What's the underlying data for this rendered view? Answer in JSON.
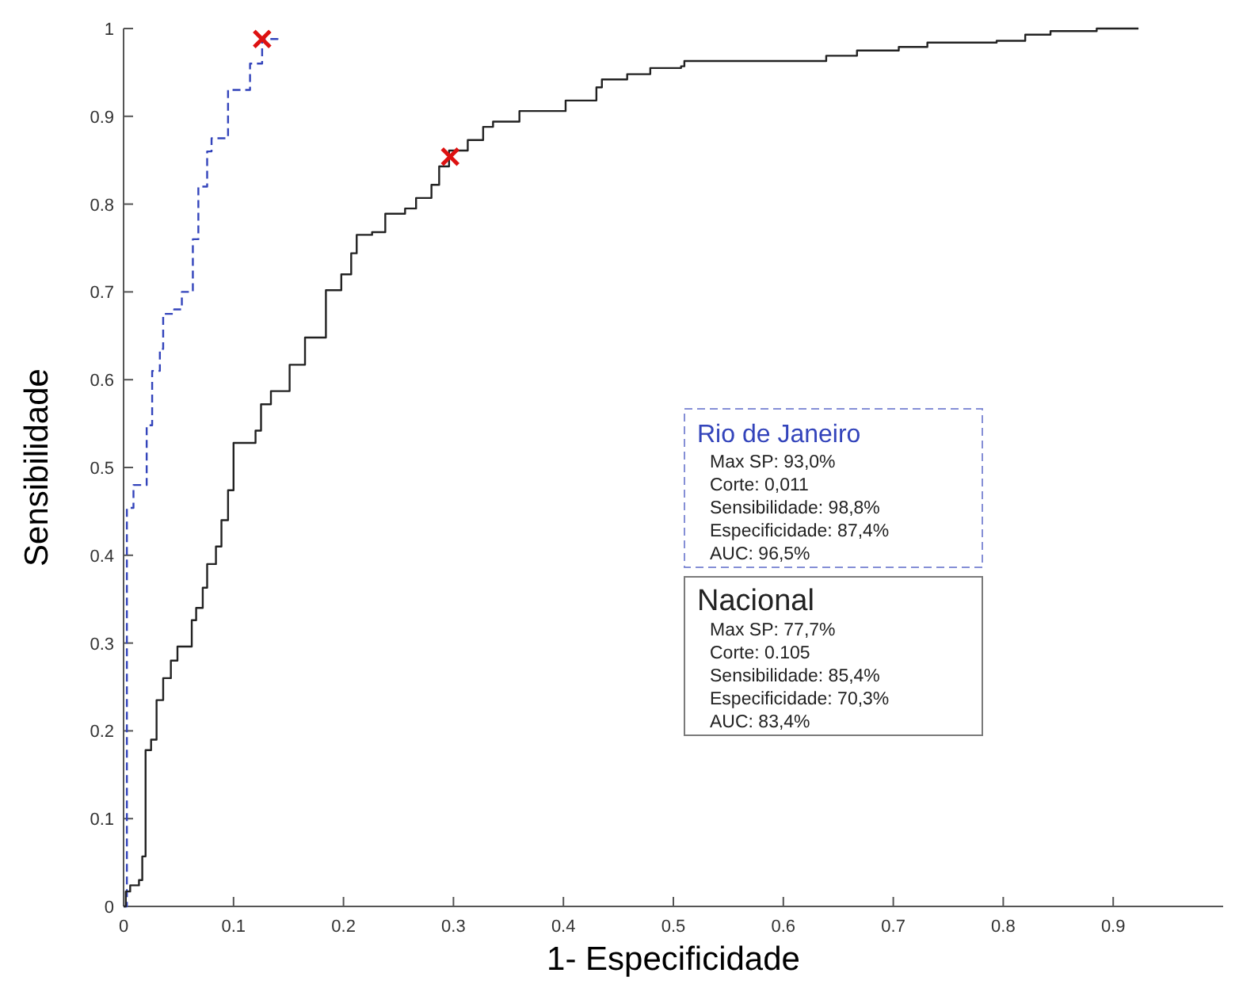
{
  "chart_data": {
    "type": "step",
    "xlabel": "1- Especificidade",
    "ylabel": "Sensibilidade",
    "xlim": [
      0,
      1
    ],
    "ylim": [
      0,
      1
    ],
    "xticks": [
      0,
      0.1,
      0.2,
      0.3,
      0.4,
      0.5,
      0.6,
      0.7,
      0.8,
      0.9
    ],
    "yticks": [
      0,
      0.1,
      0.2,
      0.3,
      0.4,
      0.5,
      0.6,
      0.7,
      0.8,
      0.9,
      1
    ],
    "grid": false,
    "legend": "right",
    "series": [
      {
        "name": "Rio de Janeiro",
        "color": "#3344bb",
        "line_style": "dashed",
        "x": [
          0,
          0.003,
          0.009,
          0.02,
          0.021,
          0.026,
          0.033,
          0.036,
          0.046,
          0.053,
          0.061,
          0.063,
          0.068,
          0.076,
          0.08,
          0.095,
          0.111,
          0.115,
          0.126,
          0.14
        ],
        "values": [
          0,
          0.454,
          0.48,
          0.48,
          0.548,
          0.61,
          0.635,
          0.675,
          0.68,
          0.7,
          0.7,
          0.76,
          0.82,
          0.86,
          0.875,
          0.93,
          0.93,
          0.96,
          0.988,
          0.99
        ]
      },
      {
        "name": "Nacional",
        "color": "#222222",
        "line_style": "solid",
        "x": [
          0,
          0.002,
          0.006,
          0.014,
          0.017,
          0.02,
          0.025,
          0.03,
          0.036,
          0.043,
          0.049,
          0.059,
          0.062,
          0.066,
          0.072,
          0.076,
          0.084,
          0.089,
          0.095,
          0.1,
          0.12,
          0.125,
          0.134,
          0.151,
          0.165,
          0.181,
          0.184,
          0.198,
          0.207,
          0.212,
          0.226,
          0.238,
          0.256,
          0.266,
          0.28,
          0.287,
          0.296,
          0.313,
          0.327,
          0.336,
          0.36,
          0.393,
          0.402,
          0.43,
          0.435,
          0.458,
          0.479,
          0.507,
          0.51,
          0.637,
          0.639,
          0.667,
          0.705,
          0.731,
          0.794,
          0.82,
          0.843,
          0.885,
          0.923
        ],
        "values": [
          0,
          0.017,
          0.024,
          0.03,
          0.057,
          0.178,
          0.19,
          0.235,
          0.26,
          0.28,
          0.296,
          0.296,
          0.326,
          0.34,
          0.363,
          0.39,
          0.41,
          0.44,
          0.474,
          0.528,
          0.542,
          0.572,
          0.587,
          0.617,
          0.648,
          0.648,
          0.702,
          0.72,
          0.744,
          0.765,
          0.768,
          0.789,
          0.795,
          0.807,
          0.822,
          0.843,
          0.861,
          0.873,
          0.888,
          0.894,
          0.906,
          0.906,
          0.918,
          0.933,
          0.942,
          0.948,
          0.955,
          0.957,
          0.963,
          0.963,
          0.969,
          0.975,
          0.979,
          0.984,
          0.986,
          0.993,
          0.997,
          1.0,
          1.0
        ]
      },
      {
        "type": "scatter",
        "color": "#dd1111",
        "marker": "cross",
        "x": [
          0.126,
          0.297
        ],
        "values": [
          0.988,
          0.854
        ]
      }
    ],
    "annotations": [
      "Max SP: 93,0%",
      "Corte: 0,011",
      "Sensibilidade: 98,8%",
      "Especificidade: 87,4%",
      "AUC: 96,5%",
      "Max SP: 77,7%",
      "Corte: 0.105",
      "Sensibilidade: 85,4%",
      "Especificidade: 70,3%",
      "AUC: 83,4%"
    ]
  }
}
